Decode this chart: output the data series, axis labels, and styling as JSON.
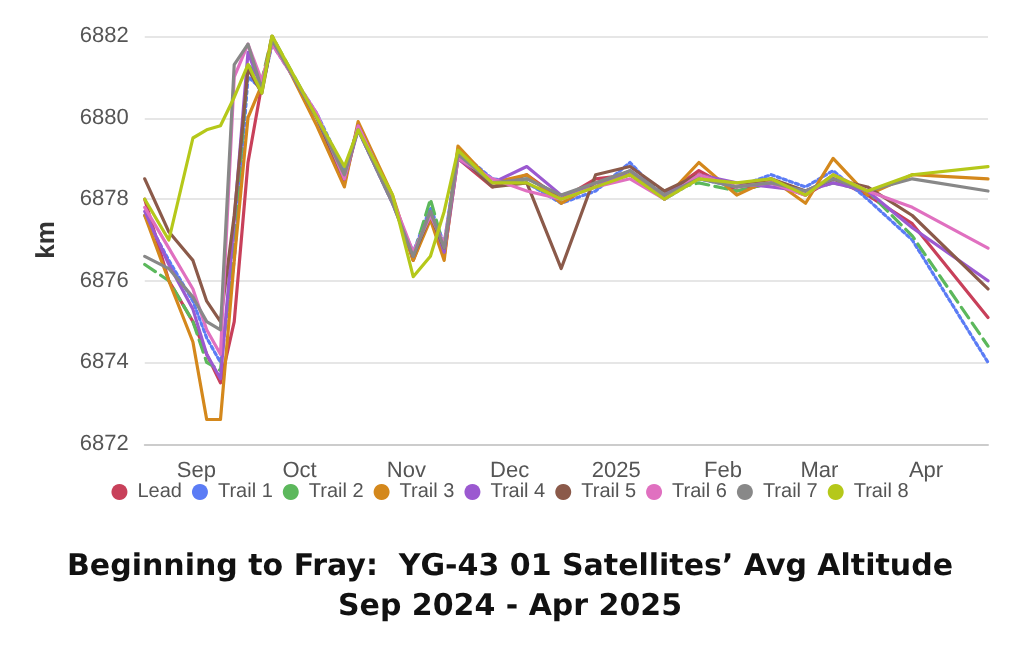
{
  "chart_data": {
    "type": "line",
    "title": "Beginning to Fray:  YG-43 01 Satellites’ Avg Altitude",
    "subtitle": "Sep 2024 - Apr 2025",
    "ylabel": "km",
    "x": [
      "2024-08-17",
      "2024-08-24",
      "2024-08-31",
      "2024-09-04",
      "2024-09-08",
      "2024-09-12",
      "2024-09-16",
      "2024-09-20",
      "2024-09-23",
      "2024-10-06",
      "2024-10-14",
      "2024-10-18",
      "2024-10-28",
      "2024-11-03",
      "2024-11-08",
      "2024-11-12",
      "2024-11-16",
      "2024-11-26",
      "2024-12-06",
      "2024-12-16",
      "2024-12-26",
      "2025-01-05",
      "2025-01-15",
      "2025-01-25",
      "2025-02-05",
      "2025-02-15",
      "2025-02-25",
      "2025-03-05",
      "2025-03-15",
      "2025-03-28",
      "2025-04-19"
    ],
    "xlim": [
      "2024-08-17",
      "2025-04-19"
    ],
    "xticks": [
      {
        "value": "2024-09-01",
        "label": "Sep"
      },
      {
        "value": "2024-10-01",
        "label": "Oct"
      },
      {
        "value": "2024-11-01",
        "label": "Nov"
      },
      {
        "value": "2024-12-01",
        "label": "Dec"
      },
      {
        "value": "2025-01-01",
        "label": "2025"
      },
      {
        "value": "2025-02-01",
        "label": "Feb"
      },
      {
        "value": "2025-03-01",
        "label": "Mar"
      },
      {
        "value": "2025-04-01",
        "label": "Apr"
      }
    ],
    "ylim": [
      6872,
      6882
    ],
    "yticks": [
      6872,
      6874,
      6876,
      6878,
      6880,
      6882
    ],
    "grid": "y",
    "legend": "bottom",
    "marker": "none",
    "line_style": "solid",
    "series": [
      {
        "name": "Lead",
        "color": "#c8405a",
        "values": [
          6878.0,
          6876.0,
          6875.0,
          6874.2,
          6873.5,
          6875.0,
          6878.9,
          6880.8,
          6881.9,
          6880.0,
          6878.4,
          6879.8,
          6878.0,
          6876.5,
          6877.6,
          6876.6,
          6879.0,
          6878.3,
          6878.6,
          6878.0,
          6878.5,
          6878.6,
          6878.1,
          6878.7,
          6878.2,
          6878.4,
          6878.1,
          6878.5,
          6878.1,
          6877.4,
          6875.1
        ]
      },
      {
        "name": "Trail 1",
        "color": "#5b7cf5",
        "line_style": "dotted",
        "values": [
          6877.6,
          6876.5,
          6875.5,
          6874.6,
          6874.0,
          6876.5,
          6881.0,
          6880.7,
          6881.8,
          6880.1,
          6878.7,
          6879.7,
          6877.9,
          6876.7,
          6877.8,
          6876.9,
          6879.2,
          6878.5,
          6878.4,
          6877.9,
          6878.2,
          6878.9,
          6878.0,
          6878.5,
          6878.3,
          6878.6,
          6878.3,
          6878.7,
          6878.0,
          6877.0,
          6874.0
        ]
      },
      {
        "name": "Trail 2",
        "color": "#5cb85c",
        "line_style": "dashed",
        "values": [
          6876.4,
          6876.0,
          6875.0,
          6874.0,
          6873.8,
          6877.0,
          6881.3,
          6880.9,
          6882.0,
          6880.0,
          6878.6,
          6879.8,
          6878.0,
          6876.6,
          6878.0,
          6876.8,
          6879.1,
          6878.4,
          6878.5,
          6878.1,
          6878.3,
          6878.6,
          6878.2,
          6878.4,
          6878.2,
          6878.4,
          6878.2,
          6878.4,
          6878.2,
          6877.1,
          6874.4
        ]
      },
      {
        "name": "Trail 3",
        "color": "#d4881c",
        "values": [
          6877.6,
          6876.0,
          6874.5,
          6872.6,
          6872.6,
          6876.5,
          6880.0,
          6880.8,
          6882.0,
          6879.8,
          6878.3,
          6879.9,
          6878.1,
          6876.5,
          6877.5,
          6876.5,
          6879.3,
          6878.4,
          6878.6,
          6877.9,
          6878.4,
          6878.6,
          6878.0,
          6878.9,
          6878.1,
          6878.5,
          6877.9,
          6879.0,
          6878.1,
          6878.6,
          6878.5
        ]
      },
      {
        "name": "Trail 4",
        "color": "#9b59d0",
        "values": [
          6877.7,
          6876.4,
          6875.3,
          6874.2,
          6873.6,
          6877.5,
          6881.6,
          6880.7,
          6881.9,
          6880.0,
          6878.5,
          6879.7,
          6877.9,
          6876.6,
          6877.7,
          6876.7,
          6879.0,
          6878.4,
          6878.8,
          6878.1,
          6878.3,
          6878.7,
          6878.1,
          6878.6,
          6878.4,
          6878.3,
          6878.2,
          6878.4,
          6878.2,
          6877.3,
          6876.0
        ]
      },
      {
        "name": "Trail 5",
        "color": "#8b5a4a",
        "values": [
          6878.5,
          6877.2,
          6876.5,
          6875.5,
          6875.0,
          6877.6,
          6881.2,
          6880.6,
          6881.9,
          6880.0,
          6878.5,
          6879.8,
          6878.0,
          6876.6,
          6877.6,
          6876.8,
          6879.1,
          6878.3,
          6878.4,
          6876.3,
          6878.6,
          6878.8,
          6878.2,
          6878.6,
          6878.3,
          6878.5,
          6878.2,
          6878.5,
          6878.3,
          6877.6,
          6875.8
        ]
      },
      {
        "name": "Trail 6",
        "color": "#e070c0",
        "values": [
          6877.8,
          6876.8,
          6875.8,
          6874.8,
          6874.2,
          6881.0,
          6881.8,
          6880.9,
          6881.8,
          6880.1,
          6878.5,
          6879.8,
          6878.0,
          6876.7,
          6877.6,
          6876.9,
          6879.0,
          6878.5,
          6878.2,
          6878.0,
          6878.3,
          6878.5,
          6878.0,
          6878.6,
          6878.3,
          6878.4,
          6878.1,
          6878.6,
          6878.2,
          6877.8,
          6876.8
        ]
      },
      {
        "name": "Trail 7",
        "color": "#888888",
        "values": [
          6876.6,
          6876.3,
          6875.6,
          6875.0,
          6874.8,
          6881.3,
          6881.8,
          6880.7,
          6881.9,
          6880.0,
          6878.6,
          6879.7,
          6877.9,
          6876.6,
          6877.7,
          6876.8,
          6879.1,
          6878.4,
          6878.5,
          6878.1,
          6878.4,
          6878.7,
          6878.1,
          6878.5,
          6878.3,
          6878.4,
          6878.2,
          6878.5,
          6878.2,
          6878.5,
          6878.2
        ]
      },
      {
        "name": "Trail 8",
        "color": "#b5c81a",
        "values": [
          6878.0,
          6877.0,
          6879.5,
          6879.7,
          6879.8,
          6880.5,
          6881.3,
          6880.6,
          6882.0,
          6880.0,
          6878.8,
          6879.7,
          6878.1,
          6876.1,
          6876.6,
          6877.7,
          6879.2,
          6878.4,
          6878.4,
          6878.0,
          6878.3,
          6878.6,
          6878.0,
          6878.5,
          6878.4,
          6878.5,
          6878.1,
          6878.6,
          6878.2,
          6878.6,
          6878.8
        ]
      }
    ]
  }
}
